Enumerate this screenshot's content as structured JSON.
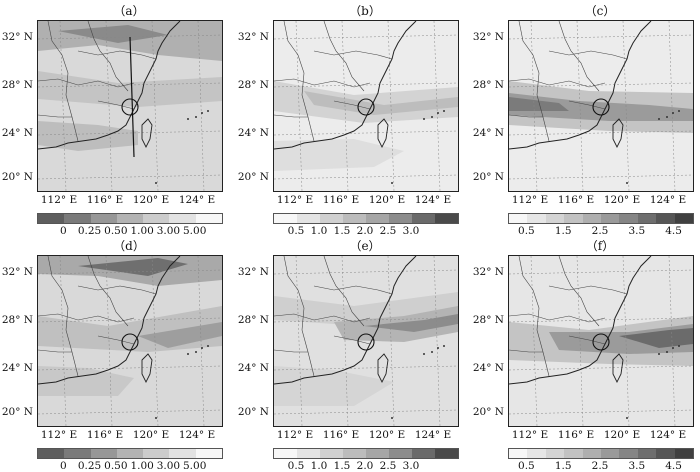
{
  "panels": [
    {
      "label": "（a）",
      "scale": "s1",
      "style": "a"
    },
    {
      "label": "（b）",
      "scale": "s2",
      "style": "b"
    },
    {
      "label": "（c）",
      "scale": "s3",
      "style": "c"
    },
    {
      "label": "（d）",
      "scale": "s1",
      "style": "d"
    },
    {
      "label": "（e）",
      "scale": "s2",
      "style": "e"
    },
    {
      "label": "（f）",
      "scale": "s3",
      "style": "f"
    }
  ],
  "lat_labels": [
    "32° N",
    "28° N",
    "24° N",
    "20° N"
  ],
  "lon_labels": [
    "112° E",
    "116° E",
    "120° E",
    "124° E"
  ],
  "scales": {
    "s1": {
      "labels": [
        "0",
        "0.25",
        "0.50",
        "1.00",
        "3.00",
        "5.00"
      ],
      "colors": [
        "#5e5e5e",
        "#7a7a7a",
        "#979797",
        "#b3b3b3",
        "#cccccc",
        "#e2e2e2",
        "#f7f7f7"
      ]
    },
    "s2": {
      "labels": [
        "0.5",
        "1.0",
        "1.5",
        "2.0",
        "2.5",
        "3.0"
      ],
      "colors": [
        "#f7f7f7",
        "#e4e4e4",
        "#d0d0d0",
        "#bcbcbc",
        "#a6a6a6",
        "#8c8c8c",
        "#6a6a6a",
        "#4a4a4a"
      ]
    },
    "s3": {
      "labels": [
        "0.5",
        "1.5",
        "2.5",
        "3.5",
        "4.5"
      ],
      "colors": [
        "#f7f7f7",
        "#e6e6e6",
        "#d4d4d4",
        "#c2c2c2",
        "#afafaf",
        "#9a9a9a",
        "#858585",
        "#6e6e6e",
        "#565656",
        "#404040"
      ]
    }
  }
}
